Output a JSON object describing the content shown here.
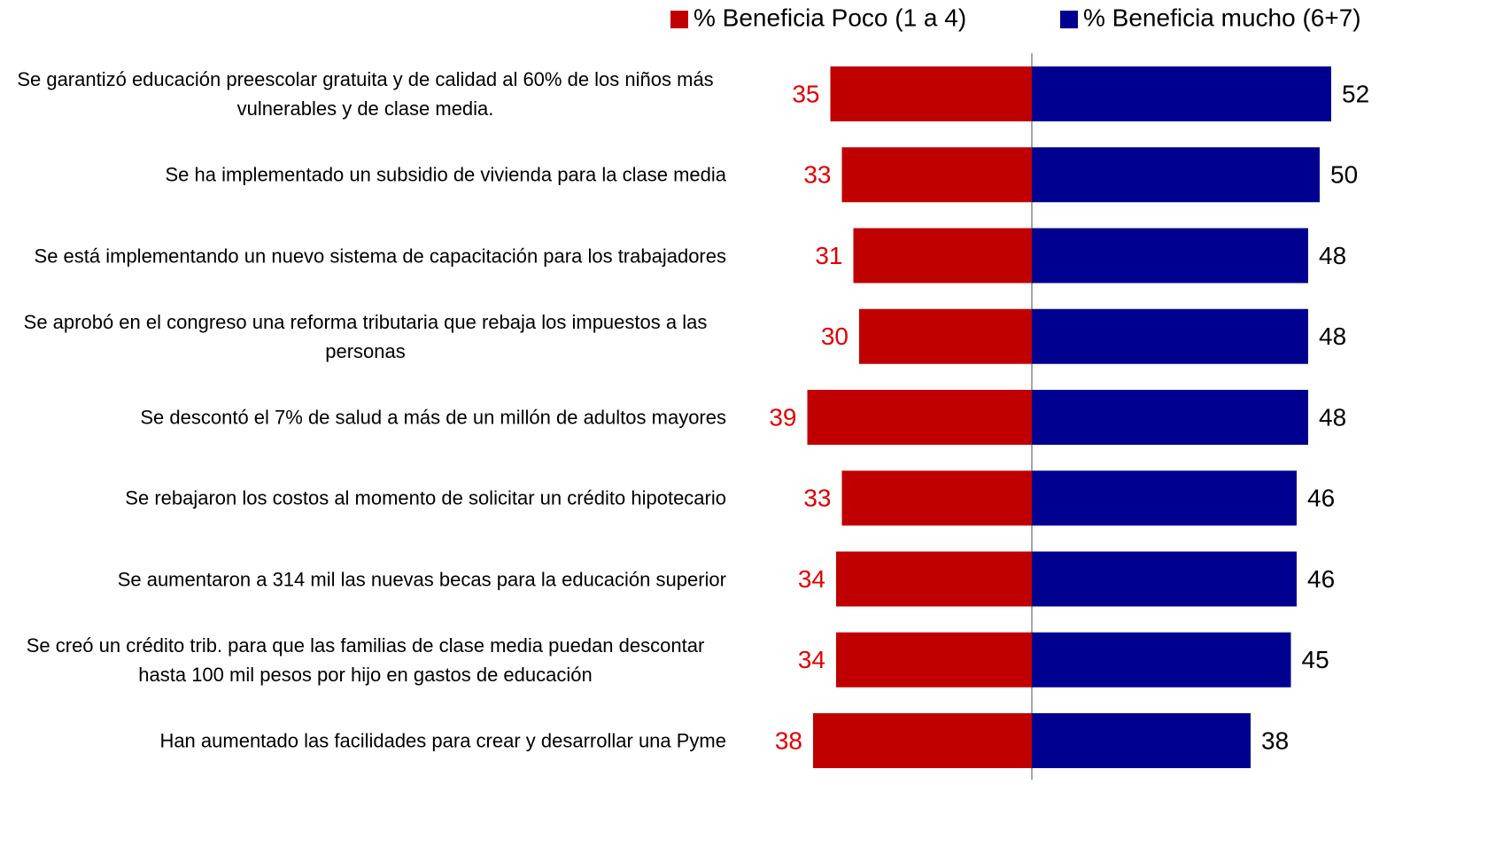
{
  "chart_data": {
    "type": "bar",
    "categories": [
      "Se garantizó educación preescolar gratuita y de calidad al 60%  de los niños más vulnerables y de clase media.",
      "Se ha implementado un subsidio de vivienda para la clase media",
      "Se está implementando un nuevo sistema de capacitación para los trabajadores",
      "Se aprobó en el congreso una reforma tributaria que rebaja los impuestos a las personas",
      "Se descontó el 7% de salud a más de un millón de adultos mayores",
      "Se rebajaron los costos al momento de solicitar un crédito hipotecario",
      "Se aumentaron a 314 mil las nuevas becas para la educación superior",
      "Se creó un crédito trib. para que las familias de clase media puedan descontar hasta 100 mil pesos por hijo en gastos de educación",
      "Han aumentado las facilidades para crear y desarrollar una Pyme"
    ],
    "series": [
      {
        "name": "% Beneficia Poco (1 a 4)",
        "color": "#c00000",
        "values": [
          35,
          33,
          31,
          30,
          39,
          33,
          34,
          34,
          38
        ]
      },
      {
        "name": "% Beneficia mucho (6+7)",
        "color": "#000090",
        "values": [
          52,
          50,
          48,
          48,
          48,
          46,
          46,
          45,
          38
        ]
      }
    ]
  }
}
